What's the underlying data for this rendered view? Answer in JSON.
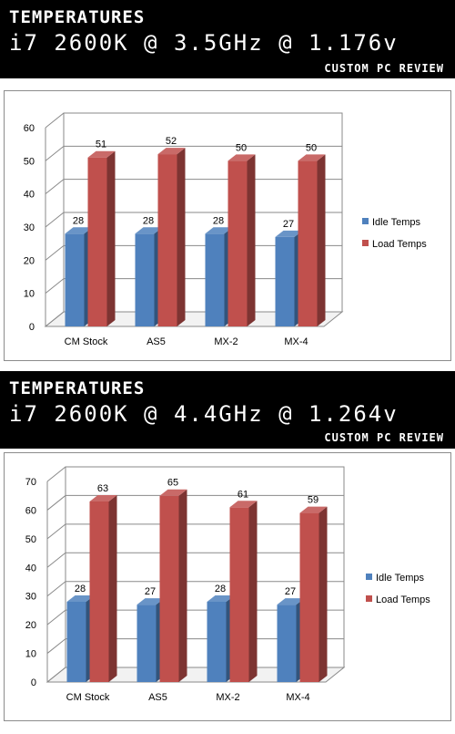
{
  "panels": [
    {
      "banner": {
        "title": "TEMPERATURES",
        "subtitle": "i7 2600K @ 3.5GHz @ 1.176v",
        "credit": "CUSTOM PC REVIEW"
      }
    },
    {
      "banner": {
        "title": "TEMPERATURES",
        "subtitle": "i7 2600K @ 4.4GHz @ 1.264v",
        "credit": "CUSTOM PC REVIEW"
      }
    }
  ],
  "chart_data": [
    {
      "type": "bar",
      "style": "3d-clustered-column",
      "categories": [
        "CM Stock",
        "AS5",
        "MX-2",
        "MX-4"
      ],
      "series": [
        {
          "name": "Idle Temps",
          "values": [
            28,
            28,
            28,
            27
          ],
          "color": "#4f81bd"
        },
        {
          "name": "Load Temps",
          "values": [
            51,
            52,
            50,
            50
          ],
          "color": "#c0504d"
        }
      ],
      "ylim": [
        0,
        60
      ],
      "yticks": [
        0,
        10,
        20,
        30,
        40,
        50,
        60
      ],
      "grid": true,
      "data_labels": true,
      "legend": "right",
      "title": "",
      "xlabel": "",
      "ylabel": ""
    },
    {
      "type": "bar",
      "style": "3d-clustered-column",
      "categories": [
        "CM Stock",
        "AS5",
        "MX-2",
        "MX-4"
      ],
      "series": [
        {
          "name": "Idle Temps",
          "values": [
            28,
            27,
            28,
            27
          ],
          "color": "#4f81bd"
        },
        {
          "name": "Load Temps",
          "values": [
            63,
            65,
            61,
            59
          ],
          "color": "#c0504d"
        }
      ],
      "ylim": [
        0,
        70
      ],
      "yticks": [
        0,
        10,
        20,
        30,
        40,
        50,
        60,
        70
      ],
      "grid": true,
      "data_labels": true,
      "legend": "right",
      "title": "",
      "xlabel": "",
      "ylabel": ""
    }
  ]
}
